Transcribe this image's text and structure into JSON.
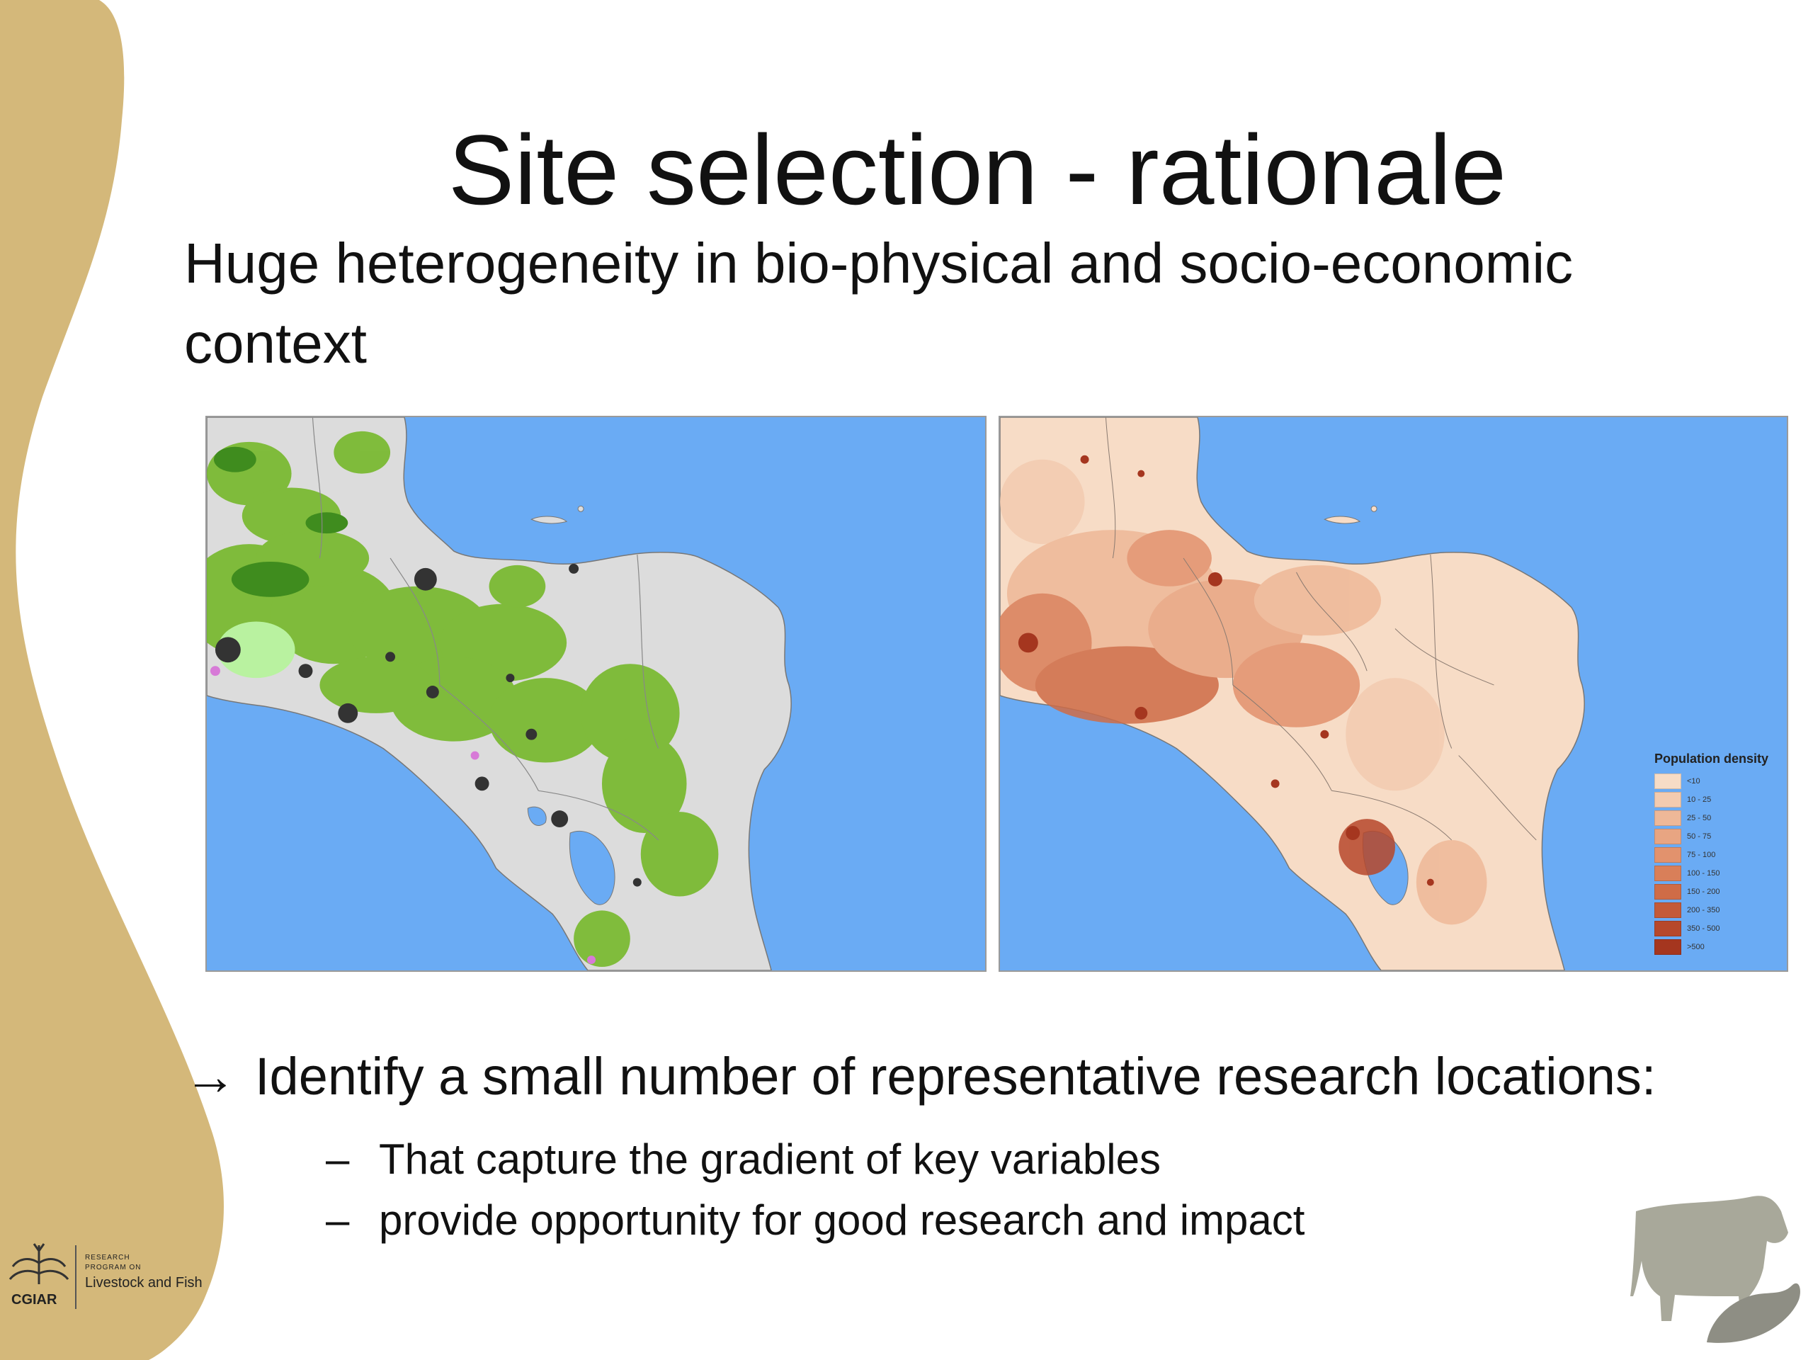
{
  "slide": {
    "title": "Site selection - rationale",
    "subtitle": "Huge heterogeneity in bio-physical and socio-economic context",
    "main_point": "Identify a small number of representative research locations:",
    "sub_points": [
      "That capture the gradient of key variables",
      "provide opportunity for good research and impact"
    ]
  },
  "maps": {
    "left": {
      "icon": "land-cover-map"
    },
    "right": {
      "icon": "population-density-map",
      "legend_title": "Population density",
      "legend": [
        {
          "label": "<10",
          "color": "#f7dcc6"
        },
        {
          "label": "10 - 25",
          "color": "#f3cbb0"
        },
        {
          "label": "25 - 50",
          "color": "#eeb898"
        },
        {
          "label": "50 - 75",
          "color": "#e8a582"
        },
        {
          "label": "75 - 100",
          "color": "#e2926d"
        },
        {
          "label": "100 - 150",
          "color": "#d97f59"
        },
        {
          "label": "150 - 200",
          "color": "#cf6c47"
        },
        {
          "label": "200 - 350",
          "color": "#c45a38"
        },
        {
          "label": "350 - 500",
          "color": "#b7482b"
        },
        {
          "label": ">500",
          "color": "#a5361f"
        }
      ]
    }
  },
  "logo": {
    "org": "CGIAR",
    "program_line1": "RESEARCH",
    "program_line2": "PROGRAM ON",
    "program_name": "Livestock and Fish"
  },
  "decor": {
    "cow_icon": "cow-fish-icon",
    "band_color": "#d4b87a"
  }
}
